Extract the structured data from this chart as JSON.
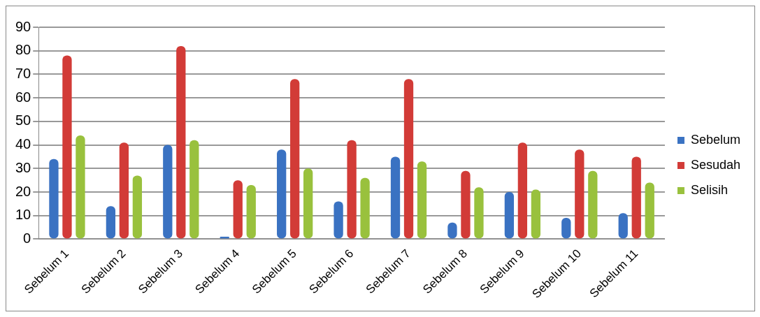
{
  "chart_data": {
    "type": "bar",
    "categories": [
      "Sebelum 1",
      "Sebelum 2",
      "Sebelum 3",
      "Sebelum 4",
      "Sebelum 5",
      "Sebelum 6",
      "Sebelum 7",
      "Sebelum 8",
      "Sebelum 9",
      "Sebelum 10",
      "Sebelum 11"
    ],
    "series": [
      {
        "name": "Sebelum",
        "color": "#3a72c2",
        "values": [
          34,
          14,
          40,
          1,
          38,
          16,
          35,
          7,
          20,
          9,
          11
        ]
      },
      {
        "name": "Sesudah",
        "color": "#d23b37",
        "values": [
          78,
          41,
          82,
          25,
          68,
          42,
          68,
          29,
          41,
          38,
          35
        ]
      },
      {
        "name": "Selisih",
        "color": "#99c13d",
        "values": [
          44,
          27,
          42,
          23,
          30,
          26,
          33,
          22,
          21,
          29,
          24
        ]
      }
    ],
    "ylim": [
      0,
      90
    ],
    "yticks": [
      0,
      10,
      20,
      30,
      40,
      50,
      60,
      70,
      80,
      90
    ],
    "grid": "y",
    "legend": "right"
  }
}
